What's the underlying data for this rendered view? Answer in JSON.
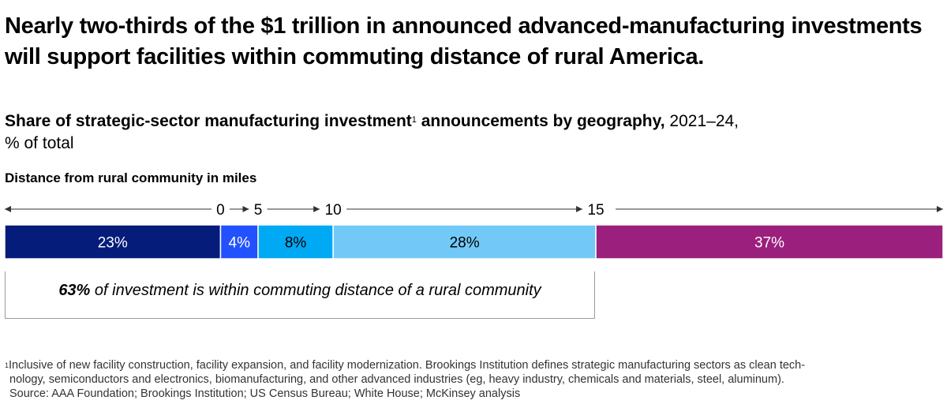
{
  "title": "Nearly two-thirds of the $1 trillion in announced advanced-manufacturing investments will support facilities within commuting distance of rural America.",
  "subtitle": {
    "bold": "Share of strategic-sector manufacturing investment",
    "sup": "1",
    "bold_rest": " announcements by geography,",
    "normal": " 2021–24,",
    "line2": "% of total"
  },
  "chart_data": {
    "type": "bar",
    "orientation": "horizontal-stacked",
    "xlabel": "Distance from rural community in miles",
    "axis_ticks": [
      "0",
      "5",
      "10",
      "15"
    ],
    "segments": [
      {
        "label": "23%",
        "value": 23,
        "color": "#051c7a"
      },
      {
        "label": "4%",
        "value": 4,
        "color": "#2251ff"
      },
      {
        "label": "8%",
        "value": 8,
        "color": "#00a9f4"
      },
      {
        "label": "28%",
        "value": 28,
        "color": "#72c9f7"
      },
      {
        "label": "37%",
        "value": 37,
        "color": "#9b1f7c"
      }
    ]
  },
  "callout": {
    "bold": "63%",
    "text": " of investment is within commuting distance of a rural community"
  },
  "footnote": {
    "sup": "1",
    "line1": "Inclusive of new facility construction, facility expansion, and facility modernization. Brookings Institution defines strategic manufacturing sectors as clean tech-",
    "line2": "nology, semiconductors and electronics, biomanufacturing, and other advanced industries (eg, heavy industry, chemicals and materials, steel, aluminum).",
    "source": "Source: AAA Foundation; Brookings Institution; US Census Bureau; White House; McKinsey analysis"
  }
}
